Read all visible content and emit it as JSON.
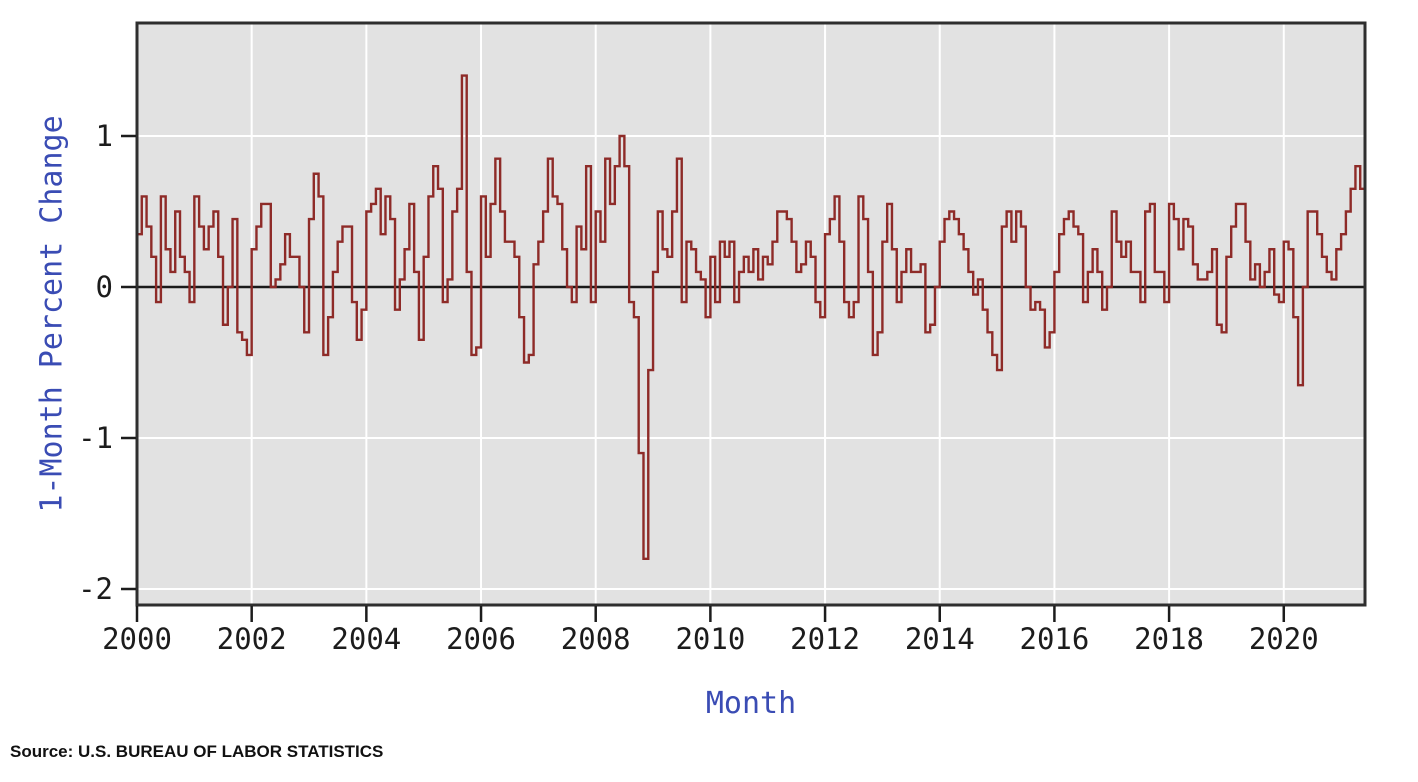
{
  "chart": {
    "y_axis_title": "1-Month Percent Change",
    "x_axis_title": "Month",
    "source": "Source: U.S. BUREAU OF LABOR STATISTICS"
  },
  "chart_data": {
    "type": "line",
    "style": "step",
    "title": "",
    "xlabel": "Month",
    "ylabel": "1-Month Percent Change",
    "x_start": "2000-01",
    "x_end": "2021-05",
    "frequency": "monthly",
    "x_tick_years": [
      2000,
      2002,
      2004,
      2006,
      2008,
      2010,
      2012,
      2014,
      2016,
      2018,
      2020
    ],
    "y_ticks": [
      1,
      0,
      -1,
      -2
    ],
    "ylim": [
      -2.15,
      1.75
    ],
    "grid": true,
    "legend": "none",
    "series": [
      {
        "name": "1-Month Percent Change",
        "values": [
          0.35,
          0.6,
          0.4,
          0.2,
          -0.1,
          0.6,
          0.25,
          0.1,
          0.5,
          0.2,
          0.1,
          -0.1,
          0.6,
          0.4,
          0.25,
          0.4,
          0.5,
          0.2,
          -0.25,
          0.0,
          0.45,
          -0.3,
          -0.35,
          -0.45,
          0.25,
          0.4,
          0.55,
          0.55,
          0.0,
          0.05,
          0.15,
          0.35,
          0.2,
          0.2,
          0.0,
          -0.3,
          0.45,
          0.75,
          0.6,
          -0.45,
          -0.2,
          0.1,
          0.3,
          0.4,
          0.4,
          -0.1,
          -0.35,
          -0.15,
          0.5,
          0.55,
          0.65,
          0.35,
          0.6,
          0.45,
          -0.15,
          0.05,
          0.25,
          0.55,
          0.1,
          -0.35,
          0.2,
          0.6,
          0.8,
          0.65,
          -0.1,
          0.05,
          0.5,
          0.65,
          1.4,
          0.1,
          -0.45,
          -0.4,
          0.6,
          0.2,
          0.55,
          0.85,
          0.5,
          0.3,
          0.3,
          0.2,
          -0.2,
          -0.5,
          -0.45,
          0.15,
          0.3,
          0.5,
          0.85,
          0.6,
          0.55,
          0.25,
          0.0,
          -0.1,
          0.4,
          0.25,
          0.8,
          -0.1,
          0.5,
          0.3,
          0.85,
          0.55,
          0.8,
          1.0,
          0.8,
          -0.1,
          -0.2,
          -1.1,
          -1.8,
          -0.55,
          0.1,
          0.5,
          0.25,
          0.2,
          0.5,
          0.85,
          -0.1,
          0.3,
          0.25,
          0.1,
          0.05,
          -0.2,
          0.2,
          -0.1,
          0.3,
          0.2,
          0.3,
          -0.1,
          0.1,
          0.2,
          0.1,
          0.25,
          0.05,
          0.2,
          0.15,
          0.3,
          0.5,
          0.5,
          0.45,
          0.3,
          0.1,
          0.15,
          0.3,
          0.2,
          -0.1,
          -0.2,
          0.35,
          0.45,
          0.6,
          0.3,
          -0.1,
          -0.2,
          -0.1,
          0.6,
          0.45,
          0.1,
          -0.45,
          -0.3,
          0.3,
          0.55,
          0.25,
          -0.1,
          0.1,
          0.25,
          0.1,
          0.1,
          0.15,
          -0.3,
          -0.25,
          0.0,
          0.3,
          0.45,
          0.5,
          0.45,
          0.35,
          0.25,
          0.1,
          -0.05,
          0.05,
          -0.15,
          -0.3,
          -0.45,
          -0.55,
          0.4,
          0.5,
          0.3,
          0.5,
          0.4,
          0.0,
          -0.15,
          -0.1,
          -0.15,
          -0.4,
          -0.3,
          0.1,
          0.35,
          0.45,
          0.5,
          0.4,
          0.35,
          -0.1,
          0.1,
          0.25,
          0.1,
          -0.15,
          0.0,
          0.5,
          0.3,
          0.2,
          0.3,
          0.1,
          0.1,
          -0.1,
          0.5,
          0.55,
          0.1,
          0.1,
          -0.1,
          0.55,
          0.45,
          0.25,
          0.45,
          0.4,
          0.15,
          0.05,
          0.05,
          0.1,
          0.25,
          -0.25,
          -0.3,
          0.2,
          0.4,
          0.55,
          0.55,
          0.3,
          0.05,
          0.15,
          0.0,
          0.1,
          0.25,
          -0.05,
          -0.1,
          0.3,
          0.25,
          -0.2,
          -0.65,
          0.0,
          0.5,
          0.5,
          0.35,
          0.2,
          0.1,
          0.05,
          0.25,
          0.35,
          0.5,
          0.65,
          0.8,
          0.65
        ]
      }
    ],
    "colors": {
      "line": "#8e2b28",
      "plot_bg": "#e2e2e2",
      "grid": "#ffffff",
      "zero_line": "#1a1a1a",
      "border": "#2e2e2e",
      "axis_title": "#3a4cb4",
      "tick_label": "#1c1c1c",
      "page_bg": "#ffffff"
    }
  }
}
